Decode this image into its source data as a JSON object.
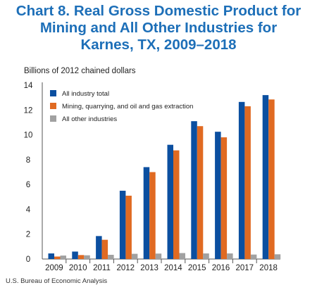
{
  "title_line1": "Chart 8. Real Gross Domestic Product for",
  "title_line2": "Mining and All Other Industries for",
  "title_line3": "Karnes, TX, 2009–2018",
  "source": "U.S. Bureau of Economic Analysis",
  "chart_data": {
    "type": "bar",
    "title": "Chart 8. Real Gross Domestic Product for Mining and All Other Industries for Karnes, TX, 2009–2018",
    "ylabel": "Billions of 2012 chained dollars",
    "xlabel": "",
    "ylim": [
      0,
      14
    ],
    "yticks": [
      0,
      2,
      4,
      6,
      8,
      10,
      12,
      14
    ],
    "legend_position": "top-left",
    "grid": false,
    "categories": [
      "2009",
      "2010",
      "2011",
      "2012",
      "2013",
      "2014",
      "2015",
      "2016",
      "2017",
      "2018"
    ],
    "series": [
      {
        "name": "All industry total",
        "color": "#0b4fa0",
        "values": [
          0.45,
          0.6,
          1.85,
          5.5,
          7.4,
          9.2,
          11.1,
          10.25,
          12.65,
          13.2
        ]
      },
      {
        "name": "Mining, quarrying, and oil and gas extraction",
        "color": "#e06a22",
        "values": [
          0.2,
          0.32,
          1.55,
          5.1,
          7.0,
          8.75,
          10.7,
          9.8,
          12.3,
          12.85
        ]
      },
      {
        "name": "All other industries",
        "color": "#a1a1a1",
        "values": [
          0.28,
          0.3,
          0.34,
          0.42,
          0.44,
          0.48,
          0.45,
          0.45,
          0.36,
          0.38
        ]
      }
    ]
  }
}
